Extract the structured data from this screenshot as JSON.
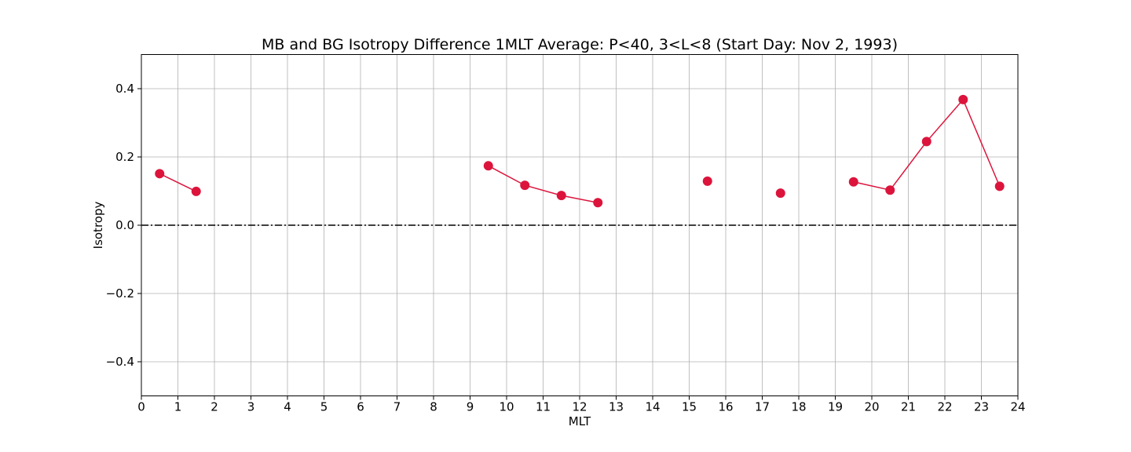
{
  "chart_data": {
    "type": "line",
    "title": "MB and BG Isotropy Difference 1MLT Average: P<40, 3<L<8 (Start Day: Nov 2, 1993)",
    "xlabel": "MLT",
    "ylabel": "Isotropy",
    "xlim": [
      0,
      24
    ],
    "ylim": [
      -0.5,
      0.5
    ],
    "x_ticks": [
      0,
      1,
      2,
      3,
      4,
      5,
      6,
      7,
      8,
      9,
      10,
      11,
      12,
      13,
      14,
      15,
      16,
      17,
      18,
      19,
      20,
      21,
      22,
      23,
      24
    ],
    "x_tick_labels": [
      "0",
      "1",
      "2",
      "3",
      "4",
      "5",
      "6",
      "7",
      "8",
      "9",
      "10",
      "11",
      "12",
      "13",
      "14",
      "15",
      "16",
      "17",
      "18",
      "19",
      "20",
      "21",
      "22",
      "23",
      "24"
    ],
    "y_ticks": [
      -0.4,
      -0.2,
      0.0,
      0.2,
      0.4
    ],
    "y_tick_labels": [
      "−0.4",
      "−0.2",
      "0.0",
      "0.2",
      "0.4"
    ],
    "grid": true,
    "reference_line": {
      "y": 0.0,
      "style": "dash-dot",
      "color": "#000000"
    },
    "series": [
      {
        "color": "#dc143c",
        "points": [
          {
            "x": 0.5,
            "y": 0.151
          },
          {
            "x": 1.5,
            "y": 0.099
          },
          {
            "x": 2.5,
            "y": null
          },
          {
            "x": 3.5,
            "y": null
          },
          {
            "x": 4.5,
            "y": null
          },
          {
            "x": 5.5,
            "y": null
          },
          {
            "x": 6.5,
            "y": null
          },
          {
            "x": 7.5,
            "y": null
          },
          {
            "x": 8.5,
            "y": null
          },
          {
            "x": 9.5,
            "y": 0.174
          },
          {
            "x": 10.5,
            "y": 0.117
          },
          {
            "x": 11.5,
            "y": 0.087
          },
          {
            "x": 12.5,
            "y": 0.066
          },
          {
            "x": 13.5,
            "y": null
          },
          {
            "x": 14.5,
            "y": null
          },
          {
            "x": 15.5,
            "y": 0.129
          },
          {
            "x": 16.5,
            "y": null
          },
          {
            "x": 17.5,
            "y": 0.094
          },
          {
            "x": 18.5,
            "y": null
          },
          {
            "x": 19.5,
            "y": 0.127
          },
          {
            "x": 20.5,
            "y": 0.103
          },
          {
            "x": 21.5,
            "y": 0.245
          },
          {
            "x": 22.5,
            "y": 0.368
          },
          {
            "x": 23.5,
            "y": 0.114
          }
        ]
      }
    ]
  }
}
